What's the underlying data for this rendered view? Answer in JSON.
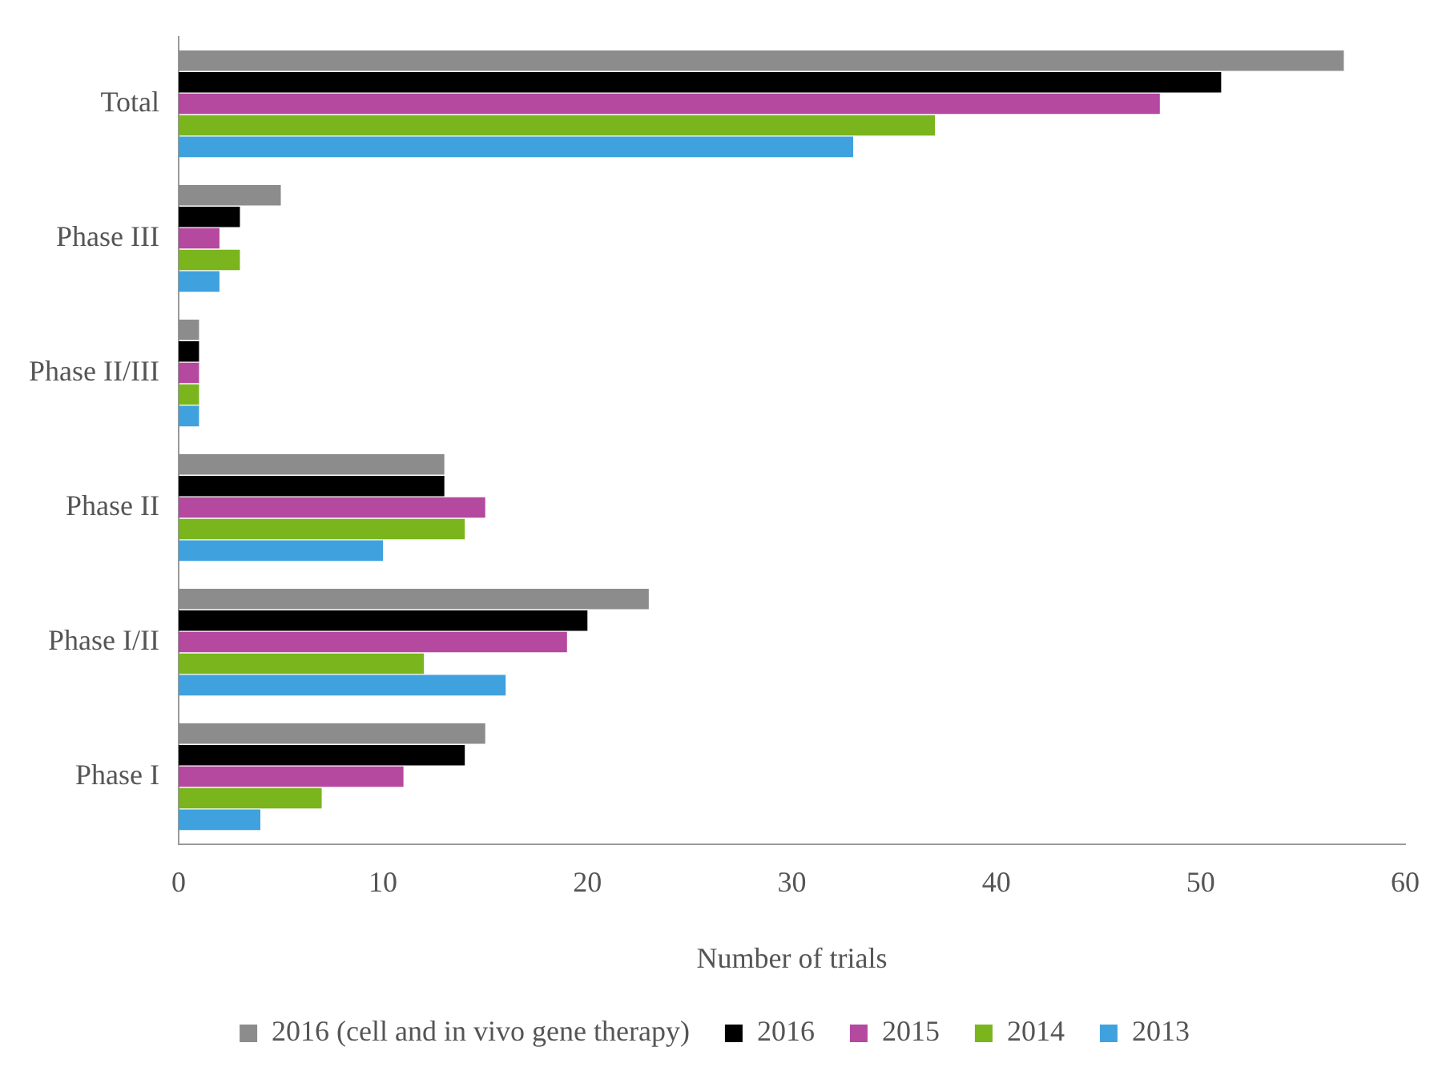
{
  "chart_data": {
    "type": "bar",
    "orientation": "horizontal",
    "xlabel": "Number of trials",
    "categories": [
      "Total",
      "Phase III",
      "Phase II/III",
      "Phase II",
      "Phase I/II",
      "Phase I"
    ],
    "series": [
      {
        "name": "2016 (cell and in vivo gene therapy)",
        "color": "#8c8c8c",
        "values": [
          57,
          5,
          1,
          13,
          23,
          15
        ]
      },
      {
        "name": "2016",
        "color": "#000000",
        "values": [
          51,
          3,
          1,
          13,
          20,
          14
        ]
      },
      {
        "name": "2015",
        "color": "#b5489f",
        "values": [
          48,
          2,
          1,
          15,
          19,
          11
        ]
      },
      {
        "name": "2014",
        "color": "#7ab51d",
        "values": [
          37,
          3,
          1,
          14,
          12,
          7
        ]
      },
      {
        "name": "2013",
        "color": "#3fa2df",
        "values": [
          33,
          2,
          1,
          10,
          16,
          4
        ]
      }
    ],
    "xlim": [
      0,
      60
    ],
    "xticks": [
      0,
      10,
      20,
      30,
      40,
      50,
      60
    ],
    "grid": false,
    "legend": "bottom"
  }
}
